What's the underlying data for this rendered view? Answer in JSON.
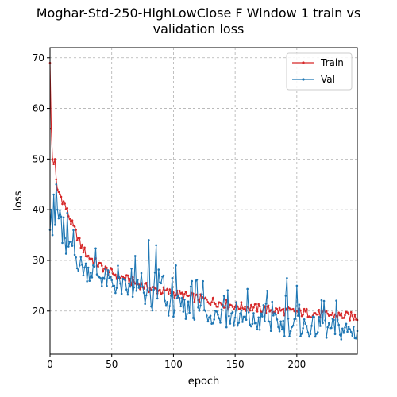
{
  "chart_data": {
    "type": "line",
    "title_lines": [
      "Moghar-Std-250-HighLowClose F Window 1 train vs",
      "validation loss"
    ],
    "xlabel": "epoch",
    "ylabel": "loss",
    "xlim": [
      0,
      249
    ],
    "ylim": [
      11.5,
      72.0
    ],
    "xticks": [
      0,
      50,
      100,
      150,
      200
    ],
    "yticks": [
      20,
      30,
      40,
      50,
      60,
      70
    ],
    "grid": true,
    "legend_position": "top-right",
    "series": [
      {
        "name": "Train",
        "color": "#d62728",
        "keypoints": [
          [
            0,
            69
          ],
          [
            1,
            56
          ],
          [
            2,
            50
          ],
          [
            3,
            49
          ],
          [
            4,
            50
          ],
          [
            5,
            46
          ],
          [
            6,
            44
          ],
          [
            8,
            43
          ],
          [
            10,
            42
          ],
          [
            12,
            41
          ],
          [
            15,
            39
          ],
          [
            18,
            37
          ],
          [
            20,
            36
          ],
          [
            25,
            33
          ],
          [
            30,
            31
          ],
          [
            35,
            30
          ],
          [
            40,
            29
          ],
          [
            50,
            27.5
          ],
          [
            60,
            26.5
          ],
          [
            70,
            25.5
          ],
          [
            80,
            24.5
          ],
          [
            90,
            24
          ],
          [
            100,
            23.5
          ],
          [
            110,
            23
          ],
          [
            120,
            22.5
          ],
          [
            130,
            22
          ],
          [
            140,
            21.5
          ],
          [
            150,
            21
          ],
          [
            160,
            20.8
          ],
          [
            170,
            20.5
          ],
          [
            180,
            20.2
          ],
          [
            190,
            20
          ],
          [
            200,
            19.8
          ],
          [
            210,
            19.6
          ],
          [
            220,
            19.4
          ],
          [
            230,
            19.2
          ],
          [
            240,
            19
          ],
          [
            249,
            18.8
          ]
        ]
      },
      {
        "name": "Val",
        "color": "#1f77b4",
        "keypoints": [
          [
            0,
            36
          ],
          [
            1,
            40
          ],
          [
            2,
            35
          ],
          [
            3,
            43
          ],
          [
            4,
            37
          ],
          [
            5,
            45
          ],
          [
            6,
            40
          ],
          [
            8,
            36
          ],
          [
            10,
            34
          ],
          [
            12,
            33
          ],
          [
            15,
            32
          ],
          [
            18,
            31
          ],
          [
            20,
            31
          ],
          [
            25,
            29
          ],
          [
            30,
            28
          ],
          [
            35,
            28
          ],
          [
            40,
            27
          ],
          [
            50,
            25.5
          ],
          [
            60,
            24.5
          ],
          [
            70,
            23.5
          ],
          [
            80,
            22.5
          ],
          [
            90,
            21.5
          ],
          [
            100,
            21
          ],
          [
            110,
            20.5
          ],
          [
            120,
            20
          ],
          [
            130,
            19.5
          ],
          [
            140,
            19
          ],
          [
            150,
            18.5
          ],
          [
            160,
            18
          ],
          [
            170,
            17.8
          ],
          [
            180,
            17.5
          ],
          [
            190,
            17.2
          ],
          [
            200,
            17
          ],
          [
            210,
            16.8
          ],
          [
            220,
            16.6
          ],
          [
            230,
            16.4
          ],
          [
            240,
            16.2
          ],
          [
            249,
            16
          ]
        ],
        "spikes": [
          [
            80,
            34
          ],
          [
            86,
            33
          ],
          [
            92,
            27
          ],
          [
            102,
            29
          ],
          [
            118,
            26
          ],
          [
            141,
            23
          ],
          [
            176,
            24
          ],
          [
            192,
            26.5
          ],
          [
            200,
            25
          ]
        ]
      }
    ]
  }
}
